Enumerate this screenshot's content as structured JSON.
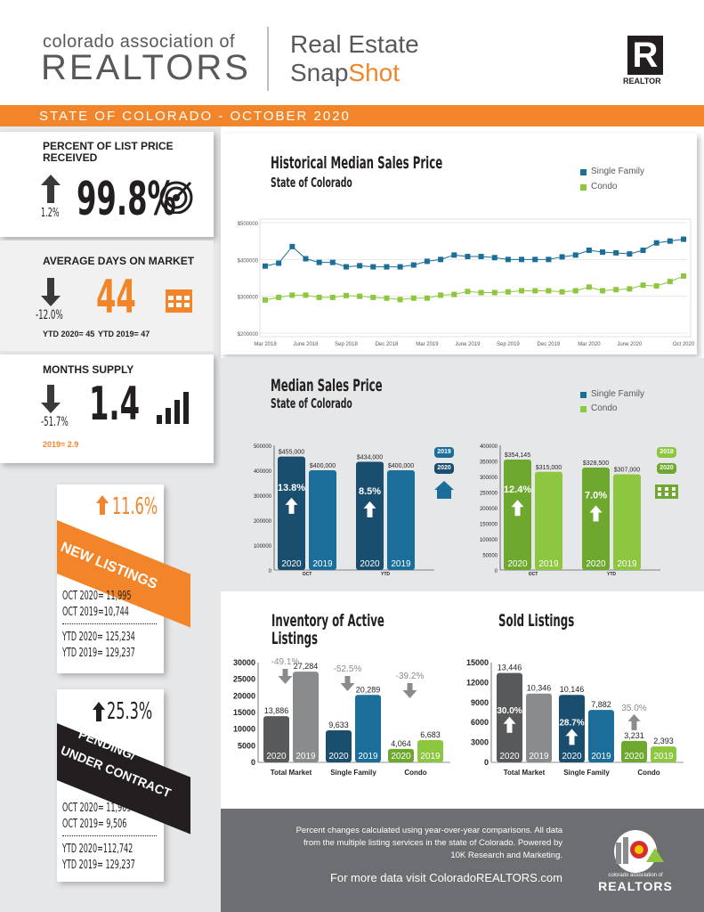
{
  "header": {
    "org_line1": "colorado association of",
    "org_line2": "REALTORS",
    "title1": "Real Estate",
    "title2a": "Snap",
    "title2b": "Shot",
    "realtor_mark": "R",
    "realtor_word": "REALTOR"
  },
  "band": {
    "text": "STATE OF COLORADO - OCTOBER 2020"
  },
  "pct_list": {
    "label": "PERCENT OF LIST PRICE RECEIVED",
    "change": "1.2%",
    "value": "99.8%"
  },
  "days": {
    "label": "AVERAGE DAYS ON MARKET",
    "change": "-12.0%",
    "value": "44",
    "ytd2020": "YTD 2020= 45",
    "ytd2019": "YTD 2019= 47"
  },
  "supply": {
    "label": "MONTHS SUPPLY",
    "change": "-51.7%",
    "value": "1.4",
    "prev": "2019= 2.9"
  },
  "new_listings": {
    "change": "11.6%",
    "label": "NEW LISTINGS",
    "l1": "OCT 2020= 11,995",
    "l2": "OCT 2019=10,744",
    "l3": "YTD 2020= 125,234",
    "l4": "YTD 2019= 129,237"
  },
  "pending": {
    "change": "25.3%",
    "label1": "PENDING/",
    "label2": "UNDER CONTRACT",
    "l1": "OCT 2020= 11,909",
    "l2": "OCT 2019= 9,506",
    "l3": "YTD 2020=112,742",
    "l4": "YTD 2019= 129,237"
  },
  "hist": {
    "title": "Historical Median Sales Price",
    "subtitle": "State of Colorado",
    "legend_sf": "Single Family",
    "legend_condo": "Condo"
  },
  "msp": {
    "title": "Median Sales Price",
    "subtitle": "State of Colorado",
    "legend_sf": "Single Family",
    "legend_condo": "Condo",
    "badge2019": "2019",
    "badge2020": "2020"
  },
  "inv": {
    "title1": "Inventory of Active",
    "title2": "Listings"
  },
  "sold": {
    "title": "Sold Listings"
  },
  "footer": {
    "line1": "Percent changes calculated using year-over-year comparisons. All data",
    "line2": "from the multiple listing services in the state of Colorado. Powered by",
    "line3": "10K Research and Marketing.",
    "url": "For more data visit ColoradoREALTORS.com",
    "logo1": "colorado association of",
    "logo2": "REALTORS"
  },
  "colors": {
    "orange": "#f2852a",
    "blue_dark": "#1a4e6e",
    "blue": "#1a6e99",
    "green": "#8dc63f",
    "green_dark": "#6ea82e",
    "gray_dark": "#58595b",
    "gray": "#8a8b8d"
  },
  "chart_data": [
    {
      "type": "line",
      "title": "Historical Median Sales Price",
      "subtitle": "State of Colorado",
      "x": [
        "Mar 2018",
        "Apr 2018",
        "May 2018",
        "Jun 2018",
        "Jul 2018",
        "Aug 2018",
        "Sep 2018",
        "Oct 2018",
        "Nov 2018",
        "Dec 2018",
        "Jan 2019",
        "Feb 2019",
        "Mar 2019",
        "Apr 2019",
        "May 2019",
        "Jun 2019",
        "Jul 2019",
        "Aug 2019",
        "Sep 2019",
        "Oct 2019",
        "Nov 2019",
        "Dec 2019",
        "Jan 2020",
        "Feb 2020",
        "Mar 2020",
        "Apr 2020",
        "May 2020",
        "Jun 2020",
        "Jul 2020",
        "Aug 2020",
        "Sep 2020",
        "Oct 2020"
      ],
      "xticks": [
        "Mar 2018",
        "June 2018",
        "Sep 2018",
        "Dec 2018",
        "Mar 2019",
        "June 2019",
        "Sep 2019",
        "Dec 2019",
        "Mar 2020",
        "June 2020",
        "Oct 2020"
      ],
      "yticks": [
        "$200000",
        "$300000",
        "$400000",
        "$500000"
      ],
      "ylim": [
        200000,
        500000
      ],
      "series": [
        {
          "name": "Single Family",
          "color": "#1a6e99",
          "values": [
            382000,
            390000,
            435000,
            402000,
            392000,
            392000,
            380000,
            383000,
            380000,
            380000,
            380000,
            385000,
            395000,
            400000,
            412000,
            408000,
            408000,
            405000,
            400000,
            400000,
            400000,
            400000,
            407000,
            412000,
            425000,
            420000,
            418000,
            415000,
            425000,
            445000,
            450000,
            455000
          ]
        },
        {
          "name": "Condo",
          "color": "#8dc63f",
          "values": [
            290000,
            297000,
            303000,
            303000,
            297000,
            297000,
            302000,
            300000,
            297000,
            295000,
            291000,
            295000,
            295000,
            303000,
            305000,
            313000,
            310000,
            310000,
            312000,
            315000,
            315000,
            315000,
            312000,
            315000,
            325000,
            315000,
            318000,
            320000,
            330000,
            328000,
            340000,
            355000
          ]
        }
      ]
    },
    {
      "type": "bar",
      "title": "Median Sales Price",
      "subtitle": "Single Family",
      "categories": [
        "OCT",
        "YTD"
      ],
      "ylim": [
        0,
        500000
      ],
      "yticks": [
        "0",
        "100000",
        "200000",
        "300000",
        "400000",
        "500000"
      ],
      "series": [
        {
          "name": "2020",
          "values": [
            455000,
            434000
          ],
          "labels": [
            "$455,000",
            "$434,000"
          ]
        },
        {
          "name": "2019",
          "values": [
            400000,
            400000
          ],
          "labels": [
            "$400,000",
            "$400,000"
          ]
        }
      ],
      "changes": [
        "13.8%",
        "8.5%"
      ]
    },
    {
      "type": "bar",
      "title": "Median Sales Price",
      "subtitle": "Condo",
      "categories": [
        "OCT",
        "YTD"
      ],
      "ylim": [
        0,
        400000
      ],
      "yticks": [
        "0",
        "50000",
        "100000",
        "150000",
        "200000",
        "250000",
        "300000",
        "350000",
        "400000"
      ],
      "series": [
        {
          "name": "2020",
          "values": [
            354145,
            328500
          ],
          "labels": [
            "$354,145",
            "$328,500"
          ]
        },
        {
          "name": "2019",
          "values": [
            315000,
            307000
          ],
          "labels": [
            "$315,000",
            "$307,000"
          ]
        }
      ],
      "changes": [
        "12.4%",
        "7.0%"
      ]
    },
    {
      "type": "bar",
      "title": "Inventory of Active Listings",
      "categories": [
        "Total Market",
        "Single Family",
        "Condo"
      ],
      "ylim": [
        0,
        30000
      ],
      "yticks": [
        "0",
        "5000",
        "10000",
        "15000",
        "20000",
        "25000",
        "30000"
      ],
      "series": [
        {
          "name": "2020",
          "values": [
            13886,
            9633,
            4064
          ],
          "labels": [
            "13,886",
            "9,633",
            "4,064"
          ]
        },
        {
          "name": "2019",
          "values": [
            27284,
            20289,
            6683
          ],
          "labels": [
            "27,284",
            "20,289",
            "6,683"
          ]
        }
      ],
      "changes": [
        "-49.1%",
        "-52.5%",
        "-39.2%"
      ]
    },
    {
      "type": "bar",
      "title": "Sold Listings",
      "categories": [
        "Total Market",
        "Single Family",
        "Condo"
      ],
      "ylim": [
        0,
        15000
      ],
      "yticks": [
        "0",
        "3000",
        "6000",
        "9000",
        "12000",
        "15000"
      ],
      "series": [
        {
          "name": "2020",
          "values": [
            13446,
            10146,
            3231
          ],
          "labels": [
            "13,446",
            "10,146",
            "3,231"
          ]
        },
        {
          "name": "2019",
          "values": [
            10346,
            7882,
            2393
          ],
          "labels": [
            "10,346",
            "7,882",
            "2,393"
          ]
        }
      ],
      "changes": [
        "30.0%",
        "28.7%",
        "35.0%"
      ]
    }
  ]
}
